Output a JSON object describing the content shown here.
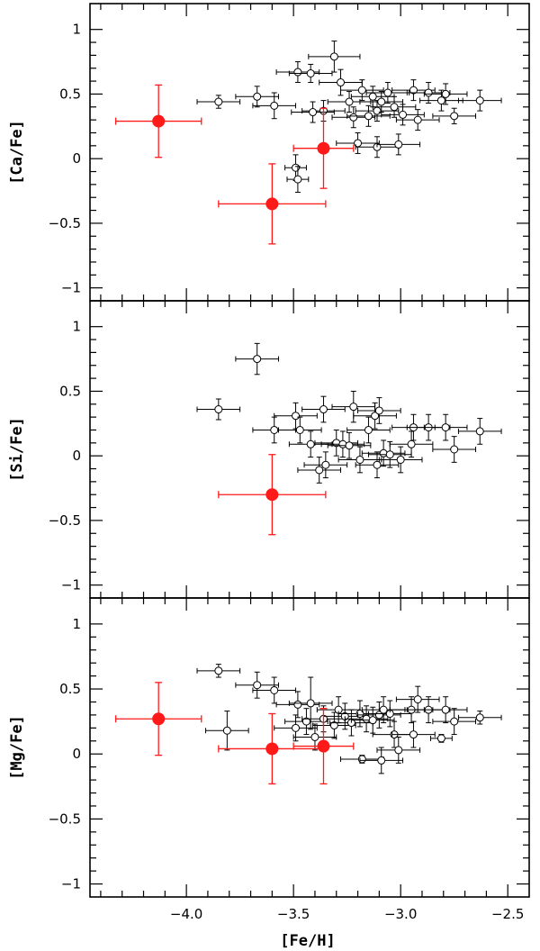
{
  "chart_data": {
    "type": "scatter",
    "xlabel": "[Fe/H]",
    "xlim": [
      -4.45,
      -2.4
    ],
    "x_ticks": [
      -4.0,
      -3.5,
      -3.0,
      -2.5
    ],
    "x_tick_labels": [
      "−4.0",
      "−3.5",
      "−3.0",
      "−2.5"
    ],
    "colors": {
      "comparison": "#000000",
      "highlight": "#ff1a1a"
    },
    "panels": [
      {
        "id": "ca",
        "ylabel": "[Ca/Fe]",
        "ylim": [
          -1.1,
          1.2
        ],
        "y_ticks": [
          1,
          0.5,
          0,
          -0.5,
          -1
        ],
        "y_tick_labels": [
          "1",
          "0.5",
          "0",
          "−0.5",
          "−1"
        ],
        "series": [
          {
            "role": "comparison",
            "points": [
              {
                "x": -3.85,
                "y": 0.44,
                "xerr": 0.1,
                "yerr": 0.05
              },
              {
                "x": -3.67,
                "y": 0.48,
                "xerr": 0.1,
                "yerr": 0.08
              },
              {
                "x": -3.59,
                "y": 0.41,
                "xerr": 0.1,
                "yerr": 0.1
              },
              {
                "x": -3.48,
                "y": 0.67,
                "xerr": 0.1,
                "yerr": 0.08
              },
              {
                "x": -3.42,
                "y": 0.66,
                "xerr": 0.1,
                "yerr": 0.07
              },
              {
                "x": -3.31,
                "y": 0.79,
                "xerr": 0.12,
                "yerr": 0.12
              },
              {
                "x": -3.28,
                "y": 0.59,
                "xerr": 0.1,
                "yerr": 0.1
              },
              {
                "x": -3.36,
                "y": 0.37,
                "xerr": 0.1,
                "yerr": 0.08
              },
              {
                "x": -3.41,
                "y": 0.36,
                "xerr": 0.1,
                "yerr": 0.08
              },
              {
                "x": -3.24,
                "y": 0.44,
                "xerr": 0.1,
                "yerr": 0.08
              },
              {
                "x": -3.22,
                "y": 0.32,
                "xerr": 0.1,
                "yerr": 0.08
              },
              {
                "x": -3.18,
                "y": 0.53,
                "xerr": 0.1,
                "yerr": 0.08
              },
              {
                "x": -3.15,
                "y": 0.33,
                "xerr": 0.1,
                "yerr": 0.08
              },
              {
                "x": -3.13,
                "y": 0.48,
                "xerr": 0.1,
                "yerr": 0.08
              },
              {
                "x": -3.11,
                "y": 0.37,
                "xerr": 0.1,
                "yerr": 0.08
              },
              {
                "x": -3.09,
                "y": 0.44,
                "xerr": 0.1,
                "yerr": 0.08
              },
              {
                "x": -3.06,
                "y": 0.51,
                "xerr": 0.1,
                "yerr": 0.08
              },
              {
                "x": -3.03,
                "y": 0.4,
                "xerr": 0.1,
                "yerr": 0.08
              },
              {
                "x": -2.99,
                "y": 0.34,
                "xerr": 0.1,
                "yerr": 0.08
              },
              {
                "x": -2.94,
                "y": 0.53,
                "xerr": 0.1,
                "yerr": 0.08
              },
              {
                "x": -2.92,
                "y": 0.3,
                "xerr": 0.1,
                "yerr": 0.08
              },
              {
                "x": -2.87,
                "y": 0.51,
                "xerr": 0.1,
                "yerr": 0.08
              },
              {
                "x": -2.81,
                "y": 0.45,
                "xerr": 0.1,
                "yerr": 0.08
              },
              {
                "x": -2.79,
                "y": 0.5,
                "xerr": 0.1,
                "yerr": 0.08
              },
              {
                "x": -2.75,
                "y": 0.33,
                "xerr": 0.1,
                "yerr": 0.06
              },
              {
                "x": -2.63,
                "y": 0.45,
                "xerr": 0.1,
                "yerr": 0.08
              },
              {
                "x": -3.2,
                "y": 0.12,
                "xerr": 0.1,
                "yerr": 0.08
              },
              {
                "x": -3.11,
                "y": 0.09,
                "xerr": 0.1,
                "yerr": 0.08
              },
              {
                "x": -3.01,
                "y": 0.11,
                "xerr": 0.1,
                "yerr": 0.08
              },
              {
                "x": -3.49,
                "y": -0.07,
                "xerr": 0.05,
                "yerr": 0.1
              },
              {
                "x": -3.48,
                "y": -0.16,
                "xerr": 0.05,
                "yerr": 0.1
              }
            ]
          },
          {
            "role": "highlight",
            "points": [
              {
                "x": -4.13,
                "y": 0.29,
                "xerr": 0.2,
                "yerr": 0.28
              },
              {
                "x": -3.36,
                "y": 0.08,
                "xerr": 0.14,
                "yerr": 0.31
              },
              {
                "x": -3.6,
                "y": -0.35,
                "xerr": 0.25,
                "yerr": 0.31
              }
            ]
          }
        ]
      },
      {
        "id": "si",
        "ylabel": "[Si/Fe]",
        "ylim": [
          -1.1,
          1.2
        ],
        "y_ticks": [
          1,
          0.5,
          0,
          -0.5,
          -1
        ],
        "y_tick_labels": [
          "1",
          "0.5",
          "0",
          "−0.5",
          "−1"
        ],
        "series": [
          {
            "role": "comparison",
            "points": [
              {
                "x": -3.85,
                "y": 0.36,
                "xerr": 0.1,
                "yerr": 0.08
              },
              {
                "x": -3.67,
                "y": 0.75,
                "xerr": 0.1,
                "yerr": 0.12
              },
              {
                "x": -3.59,
                "y": 0.2,
                "xerr": 0.1,
                "yerr": 0.1
              },
              {
                "x": -3.49,
                "y": 0.31,
                "xerr": 0.1,
                "yerr": 0.1
              },
              {
                "x": -3.47,
                "y": 0.2,
                "xerr": 0.1,
                "yerr": 0.1
              },
              {
                "x": -3.42,
                "y": 0.09,
                "xerr": 0.1,
                "yerr": 0.1
              },
              {
                "x": -3.38,
                "y": -0.11,
                "xerr": 0.1,
                "yerr": 0.1
              },
              {
                "x": -3.35,
                "y": -0.07,
                "xerr": 0.1,
                "yerr": 0.1
              },
              {
                "x": -3.36,
                "y": 0.36,
                "xerr": 0.1,
                "yerr": 0.1
              },
              {
                "x": -3.3,
                "y": 0.1,
                "xerr": 0.1,
                "yerr": 0.1
              },
              {
                "x": -3.27,
                "y": 0.09,
                "xerr": 0.1,
                "yerr": 0.1
              },
              {
                "x": -3.24,
                "y": 0.08,
                "xerr": 0.1,
                "yerr": 0.1
              },
              {
                "x": -3.22,
                "y": 0.38,
                "xerr": 0.1,
                "yerr": 0.12
              },
              {
                "x": -3.19,
                "y": -0.03,
                "xerr": 0.1,
                "yerr": 0.1
              },
              {
                "x": -3.15,
                "y": 0.2,
                "xerr": 0.1,
                "yerr": 0.1
              },
              {
                "x": -3.12,
                "y": 0.31,
                "xerr": 0.1,
                "yerr": 0.1
              },
              {
                "x": -3.1,
                "y": 0.35,
                "xerr": 0.1,
                "yerr": 0.1
              },
              {
                "x": -3.11,
                "y": -0.07,
                "xerr": 0.1,
                "yerr": 0.1
              },
              {
                "x": -3.08,
                "y": 0.02,
                "xerr": 0.1,
                "yerr": 0.1
              },
              {
                "x": -3.05,
                "y": 0.01,
                "xerr": 0.1,
                "yerr": 0.1
              },
              {
                "x": -3.0,
                "y": -0.03,
                "xerr": 0.1,
                "yerr": 0.1
              },
              {
                "x": -2.95,
                "y": 0.09,
                "xerr": 0.1,
                "yerr": 0.1
              },
              {
                "x": -2.94,
                "y": 0.22,
                "xerr": 0.1,
                "yerr": 0.1
              },
              {
                "x": -2.87,
                "y": 0.22,
                "xerr": 0.1,
                "yerr": 0.1
              },
              {
                "x": -2.79,
                "y": 0.22,
                "xerr": 0.1,
                "yerr": 0.1
              },
              {
                "x": -2.75,
                "y": 0.05,
                "xerr": 0.1,
                "yerr": 0.1
              },
              {
                "x": -2.63,
                "y": 0.19,
                "xerr": 0.1,
                "yerr": 0.1
              }
            ]
          },
          {
            "role": "highlight",
            "points": [
              {
                "x": -3.6,
                "y": -0.3,
                "xerr": 0.25,
                "yerr": 0.31
              }
            ]
          }
        ]
      },
      {
        "id": "mg",
        "ylabel": "[Mg/Fe]",
        "ylim": [
          -1.1,
          1.2
        ],
        "y_ticks": [
          1,
          0.5,
          0,
          -0.5,
          -1
        ],
        "y_tick_labels": [
          "1",
          "0.5",
          "0",
          "−0.5",
          "−1"
        ],
        "series": [
          {
            "role": "comparison",
            "points": [
              {
                "x": -3.85,
                "y": 0.64,
                "xerr": 0.1,
                "yerr": 0.05
              },
              {
                "x": -3.67,
                "y": 0.53,
                "xerr": 0.1,
                "yerr": 0.1
              },
              {
                "x": -3.59,
                "y": 0.49,
                "xerr": 0.1,
                "yerr": 0.1
              },
              {
                "x": -3.81,
                "y": 0.18,
                "xerr": 0.1,
                "yerr": 0.15
              },
              {
                "x": -3.48,
                "y": 0.38,
                "xerr": 0.1,
                "yerr": 0.1
              },
              {
                "x": -3.42,
                "y": 0.39,
                "xerr": 0.1,
                "yerr": 0.2
              },
              {
                "x": -3.49,
                "y": 0.2,
                "xerr": 0.1,
                "yerr": 0.1
              },
              {
                "x": -3.44,
                "y": 0.25,
                "xerr": 0.1,
                "yerr": 0.1
              },
              {
                "x": -3.4,
                "y": 0.13,
                "xerr": 0.1,
                "yerr": 0.1
              },
              {
                "x": -3.36,
                "y": 0.27,
                "xerr": 0.1,
                "yerr": 0.1
              },
              {
                "x": -3.31,
                "y": 0.22,
                "xerr": 0.1,
                "yerr": 0.1
              },
              {
                "x": -3.29,
                "y": 0.34,
                "xerr": 0.1,
                "yerr": 0.1
              },
              {
                "x": -3.26,
                "y": 0.29,
                "xerr": 0.1,
                "yerr": 0.1
              },
              {
                "x": -3.23,
                "y": 0.24,
                "xerr": 0.1,
                "yerr": 0.1
              },
              {
                "x": -3.19,
                "y": 0.31,
                "xerr": 0.1,
                "yerr": 0.1
              },
              {
                "x": -3.16,
                "y": 0.27,
                "xerr": 0.1,
                "yerr": 0.1
              },
              {
                "x": -3.13,
                "y": 0.26,
                "xerr": 0.1,
                "yerr": 0.1
              },
              {
                "x": -3.1,
                "y": 0.3,
                "xerr": 0.1,
                "yerr": 0.1
              },
              {
                "x": -3.08,
                "y": 0.34,
                "xerr": 0.1,
                "yerr": 0.1
              },
              {
                "x": -3.05,
                "y": 0.31,
                "xerr": 0.1,
                "yerr": 0.1
              },
              {
                "x": -3.03,
                "y": 0.15,
                "xerr": 0.1,
                "yerr": 0.1
              },
              {
                "x": -3.01,
                "y": 0.03,
                "xerr": 0.1,
                "yerr": 0.1
              },
              {
                "x": -2.95,
                "y": 0.34,
                "xerr": 0.1,
                "yerr": 0.1
              },
              {
                "x": -2.92,
                "y": 0.42,
                "xerr": 0.1,
                "yerr": 0.1
              },
              {
                "x": -2.94,
                "y": 0.15,
                "xerr": 0.1,
                "yerr": 0.1
              },
              {
                "x": -2.87,
                "y": 0.34,
                "xerr": 0.1,
                "yerr": 0.1
              },
              {
                "x": -2.79,
                "y": 0.34,
                "xerr": 0.1,
                "yerr": 0.1
              },
              {
                "x": -2.75,
                "y": 0.25,
                "xerr": 0.1,
                "yerr": 0.1
              },
              {
                "x": -2.81,
                "y": 0.12,
                "xerr": 0.05,
                "yerr": 0.03
              },
              {
                "x": -2.63,
                "y": 0.28,
                "xerr": 0.1,
                "yerr": 0.05
              },
              {
                "x": -3.18,
                "y": -0.04,
                "xerr": 0.1,
                "yerr": 0.03
              },
              {
                "x": -3.09,
                "y": -0.05,
                "xerr": 0.1,
                "yerr": 0.1
              }
            ]
          },
          {
            "role": "highlight",
            "points": [
              {
                "x": -4.13,
                "y": 0.27,
                "xerr": 0.2,
                "yerr": 0.28
              },
              {
                "x": -3.6,
                "y": 0.04,
                "xerr": 0.25,
                "yerr": 0.27
              },
              {
                "x": -3.36,
                "y": 0.06,
                "xerr": 0.14,
                "yerr": 0.29
              }
            ]
          }
        ]
      }
    ]
  }
}
